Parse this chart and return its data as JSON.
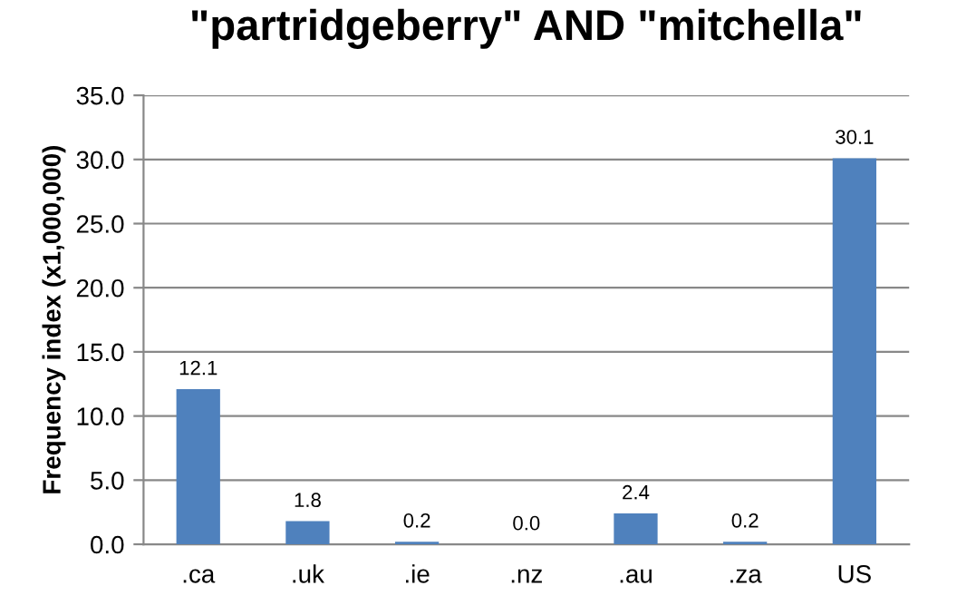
{
  "chart_data": {
    "type": "bar",
    "title": "\"partridgeberry\" AND \"mitchella\"",
    "ylabel": "Frequency index (x1,000,000)",
    "categories": [
      ".ca",
      ".uk",
      ".ie",
      ".nz",
      ".au",
      ".za",
      "US"
    ],
    "values": [
      12.1,
      1.8,
      0.2,
      0.0,
      2.4,
      0.2,
      30.1
    ],
    "color": "#4f81bd",
    "ylim": [
      0,
      35
    ],
    "yticks": [
      {
        "value": 0,
        "label": "0.0"
      },
      {
        "value": 5,
        "label": "5.0"
      },
      {
        "value": 10,
        "label": "10.0"
      },
      {
        "value": 15,
        "label": "15.0"
      },
      {
        "value": 20,
        "label": "20.0"
      },
      {
        "value": 25,
        "label": "25.0"
      },
      {
        "value": 30,
        "label": "30.0"
      },
      {
        "value": 35,
        "label": "35.0"
      }
    ],
    "value_labels": [
      "12.1",
      "1.8",
      "0.2",
      "0.0",
      "2.4",
      "0.2",
      "30.1"
    ],
    "grid": "y"
  }
}
